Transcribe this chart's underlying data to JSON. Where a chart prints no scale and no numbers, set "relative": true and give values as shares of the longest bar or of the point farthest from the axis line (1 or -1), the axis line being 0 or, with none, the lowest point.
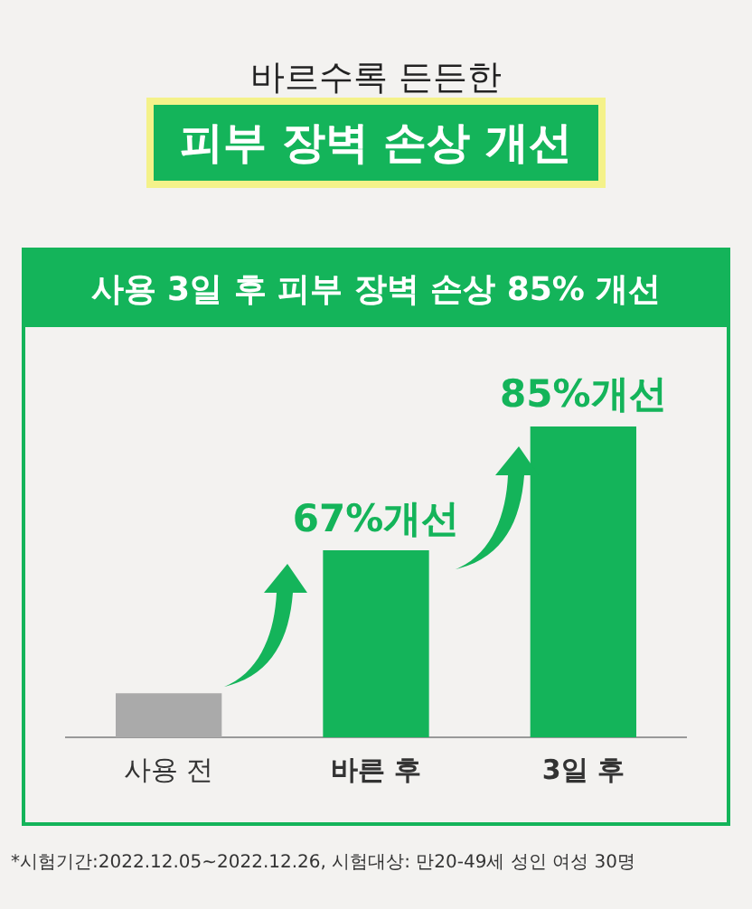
{
  "chart_data": {
    "type": "bar",
    "title": "바르수록 든든한",
    "subtitle": "피부 장벽 손상 개선",
    "annotations": [
      "사용 3일 후 피부 장벽 손상 85% 개선",
      "*시험기간:2022.12.05~2022.12.26, 시험대상: 만20-49세 성인 여성 30명",
      {
        "text": "67%개선",
        "x": "바른 후",
        "y": 0.6
      },
      {
        "text": "85%개선",
        "x": "3일 후",
        "y": 1
      }
    ],
    "categories": [
      "사용 전",
      "바른 후",
      "3일 후"
    ],
    "values": [
      0.14,
      0.6,
      1
    ],
    "colors": [
      "#aaaaaa",
      "#14b45a",
      "#14b45a"
    ],
    "relative": true
  }
}
